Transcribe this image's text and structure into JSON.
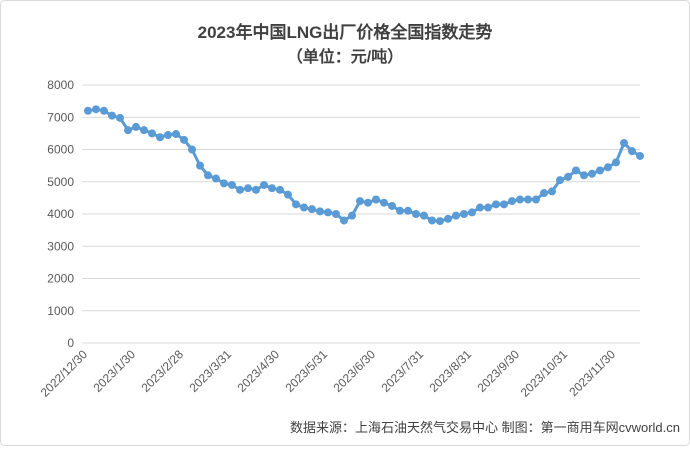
{
  "chart_data": {
    "type": "line",
    "title": "2023年中国LNG出厂价格全国指数走势",
    "subtitle": "（单位：元/吨）",
    "source": "数据来源：上海石油天然气交易中心 制图：第一商用车网cvworld.cn",
    "categories": [
      "2022/12/30",
      null,
      null,
      null,
      null,
      null,
      "2023/1/30",
      null,
      null,
      null,
      null,
      null,
      "2023/2/28",
      null,
      null,
      null,
      null,
      null,
      "2023/3/31",
      null,
      null,
      null,
      null,
      null,
      "2023/4/30",
      null,
      null,
      null,
      null,
      null,
      "2023/5/31",
      null,
      null,
      null,
      null,
      null,
      "2023/6/30",
      null,
      null,
      null,
      null,
      null,
      "2023/7/31",
      null,
      null,
      null,
      null,
      null,
      "2023/8/31",
      null,
      null,
      null,
      null,
      null,
      "2023/9/30",
      null,
      null,
      null,
      null,
      null,
      "2023/10/31",
      null,
      null,
      null,
      null,
      null,
      "2023/11/30",
      null,
      null,
      null
    ],
    "series": [
      {
        "name": "LNG出厂价格全国指数",
        "color": "#5b9bd5",
        "values": [
          7200,
          7250,
          7200,
          7050,
          6980,
          6600,
          6700,
          6600,
          6500,
          6380,
          6450,
          6480,
          6300,
          6000,
          5500,
          5200,
          5100,
          4950,
          4900,
          4750,
          4800,
          4750,
          4900,
          4800,
          4750,
          4600,
          4300,
          4200,
          4150,
          4080,
          4050,
          4000,
          3800,
          3950,
          4400,
          4350,
          4450,
          4350,
          4250,
          4100,
          4100,
          4000,
          3950,
          3800,
          3780,
          3850,
          3950,
          4000,
          4050,
          4200,
          4200,
          4300,
          4300,
          4400,
          4450,
          4450,
          4450,
          4650,
          4700,
          5050,
          5150,
          5350,
          5200,
          5250,
          5350,
          5450,
          5600,
          6200,
          5950,
          5800
        ]
      }
    ],
    "ylim": [
      0,
      8000
    ],
    "yticks": [
      0,
      1000,
      2000,
      3000,
      4000,
      5000,
      6000,
      7000,
      8000
    ],
    "grid": true
  }
}
